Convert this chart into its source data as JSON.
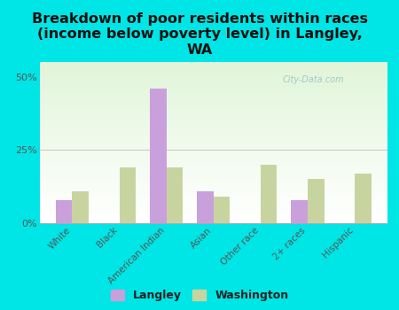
{
  "title": "Breakdown of poor residents within races\n(income below poverty level) in Langley,\nWA",
  "categories": [
    "White",
    "Black",
    "American Indian",
    "Asian",
    "Other race",
    "2+ races",
    "Hispanic"
  ],
  "langley_values": [
    8,
    0,
    46,
    11,
    0,
    8,
    0
  ],
  "washington_values": [
    11,
    19,
    19,
    9,
    20,
    15,
    17
  ],
  "langley_color": "#c9a0dc",
  "washington_color": "#c8d4a0",
  "background_color": "#00e5e5",
  "ylim": [
    0,
    55
  ],
  "yticks": [
    0,
    25,
    50
  ],
  "ytick_labels": [
    "0%",
    "25%",
    "50%"
  ],
  "watermark": "City-Data.com",
  "title_fontsize": 11.5,
  "legend_labels": [
    "Langley",
    "Washington"
  ]
}
